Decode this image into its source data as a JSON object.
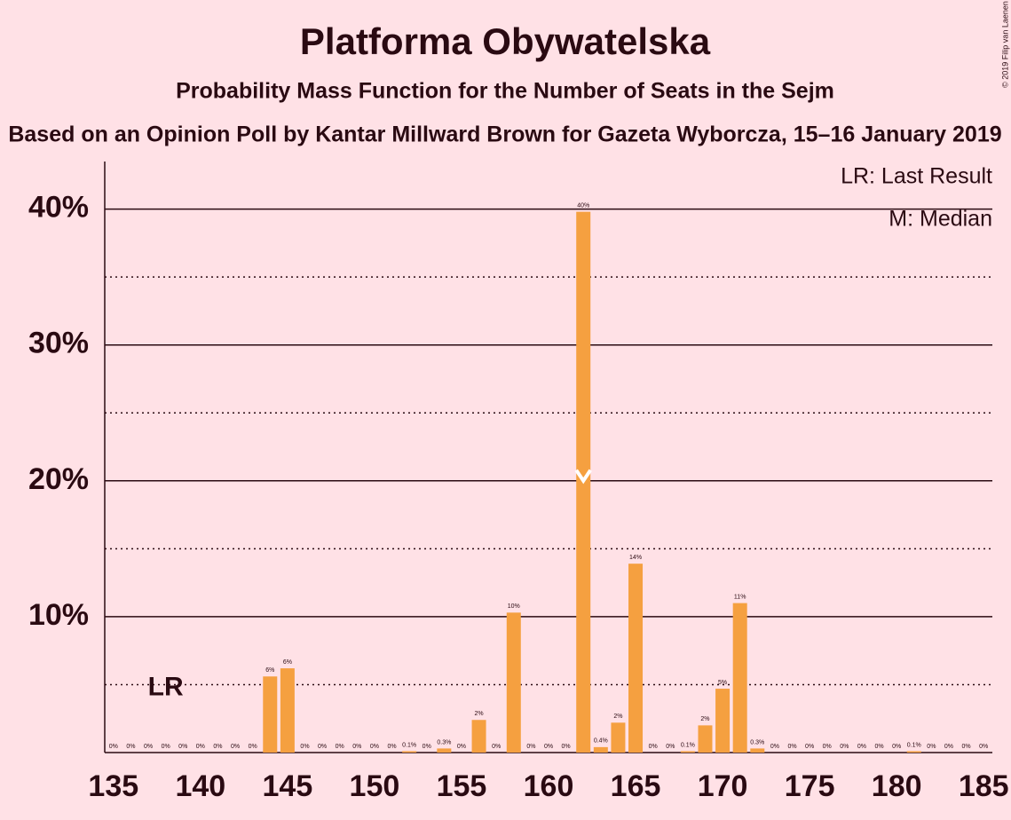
{
  "chart_data": {
    "type": "bar",
    "title": "Platforma Obywatelska",
    "subtitle": "Probability Mass Function for the Number of Seats in the Sejm",
    "subtitle2": "Based on an Opinion Poll by Kantar Millward Brown for Gazeta Wyborcza, 15–16 January 2019",
    "copyright": "© 2019 Filip van Laenen",
    "legend": [
      "LR: Last Result",
      "M: Median"
    ],
    "x": [
      135,
      136,
      137,
      138,
      139,
      140,
      141,
      142,
      143,
      144,
      145,
      146,
      147,
      148,
      149,
      150,
      151,
      152,
      153,
      154,
      155,
      156,
      157,
      158,
      159,
      160,
      161,
      162,
      163,
      164,
      165,
      166,
      167,
      168,
      169,
      170,
      171,
      172,
      173,
      174,
      175,
      176,
      177,
      178,
      179,
      180,
      181,
      182,
      183,
      184,
      185
    ],
    "values": [
      0,
      0,
      0,
      0,
      0,
      0,
      0,
      0,
      0,
      5.6,
      6.2,
      0,
      0,
      0,
      0,
      0,
      0,
      0.1,
      0,
      0.3,
      0,
      2.4,
      0,
      10.3,
      0,
      0,
      0,
      39.8,
      0.4,
      2.2,
      13.9,
      0,
      0,
      0.1,
      2.0,
      4.7,
      11.0,
      0.3,
      0,
      0,
      0,
      0,
      0,
      0,
      0,
      0,
      0.1,
      0,
      0,
      0,
      0
    ],
    "value_labels": [
      "0%",
      "0%",
      "0%",
      "0%",
      "0%",
      "0%",
      "0%",
      "0%",
      "0%",
      "6%",
      "6%",
      "0%",
      "0%",
      "0%",
      "0%",
      "0%",
      "0%",
      "0.1%",
      "0%",
      "0.3%",
      "0%",
      "2%",
      "0%",
      "10%",
      "0%",
      "0%",
      "0%",
      "40%",
      "0.4%",
      "2%",
      "14%",
      "0%",
      "0%",
      "0.1%",
      "2%",
      "5%",
      "11%",
      "0.3%",
      "0%",
      "0%",
      "0%",
      "0%",
      "0%",
      "0%",
      "0%",
      "0%",
      "0.1%",
      "0%",
      "0%",
      "0%",
      "0%"
    ],
    "color": "#f5a040",
    "median": 162,
    "last_result": {
      "x": 138,
      "label": "LR"
    },
    "xlim": [
      134.5,
      185.5
    ],
    "xticks": [
      135,
      140,
      145,
      150,
      155,
      160,
      165,
      170,
      175,
      180,
      185
    ],
    "ylim": [
      0,
      43.5
    ],
    "yticks": [
      {
        "value": 10,
        "label": "10%"
      },
      {
        "value": 20,
        "label": "20%"
      },
      {
        "value": 30,
        "label": "30%"
      },
      {
        "value": 40,
        "label": "40%"
      }
    ],
    "minor_grid": [
      5,
      15,
      25,
      35
    ],
    "grid": true
  }
}
